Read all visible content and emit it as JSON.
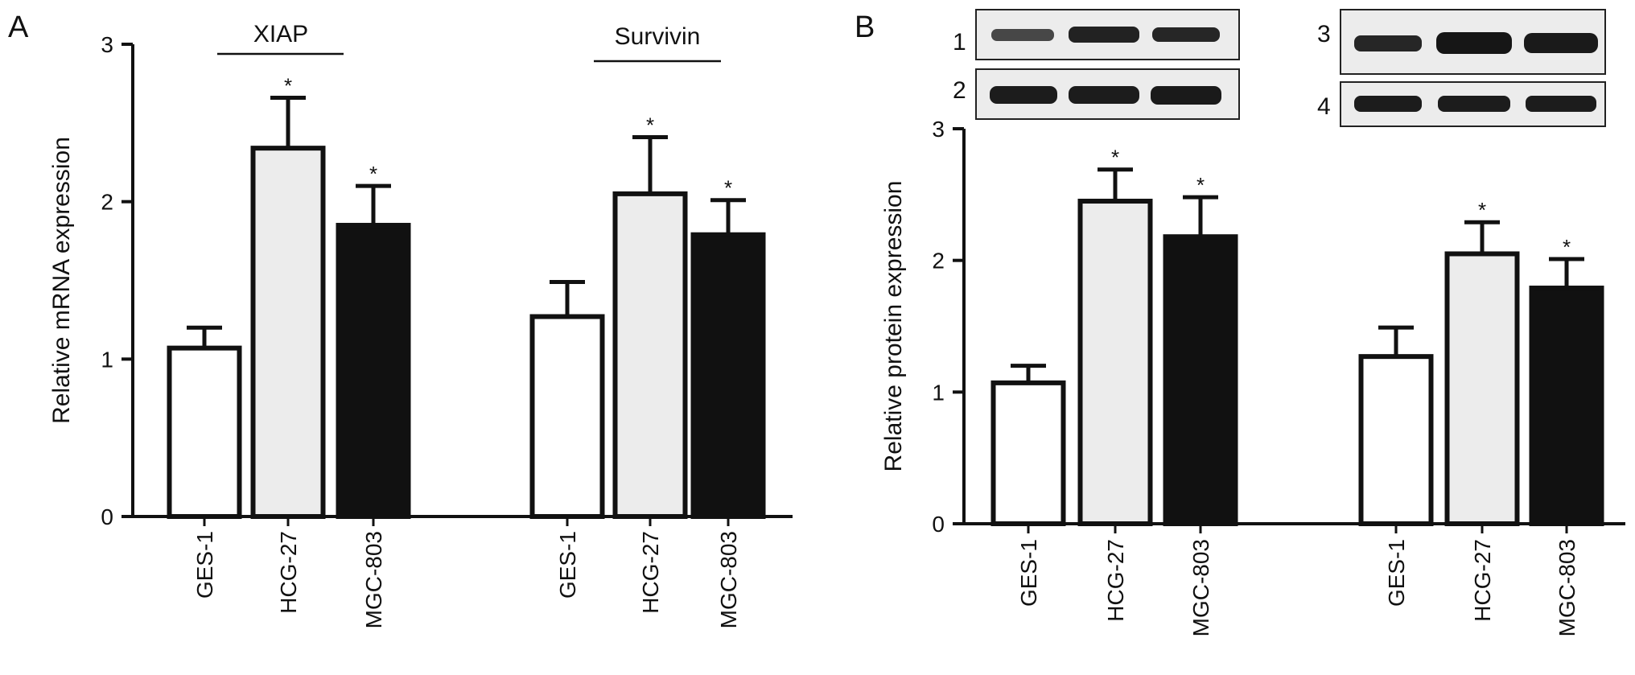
{
  "panel_a": {
    "letter": "A",
    "group_labels": [
      "XIAP",
      "Survivin"
    ]
  },
  "panel_b": {
    "letter": "B",
    "blot_labels": [
      "1",
      "2",
      "3",
      "4"
    ]
  },
  "chart_data": [
    {
      "type": "bar",
      "panel": "A",
      "ylabel": "Relative mRNA expression",
      "ylim": [
        0,
        3
      ],
      "yticks": [
        0,
        1,
        2,
        3
      ],
      "groups": [
        "XIAP",
        "Survivin"
      ],
      "categories": [
        "GES-1",
        "HCG-27",
        "MGC-803"
      ],
      "bar_colors": [
        "#ffffff",
        "#ececec",
        "#111111"
      ],
      "series": [
        {
          "group": "XIAP",
          "values": [
            1.07,
            2.34,
            1.85
          ],
          "errors": [
            0.13,
            0.32,
            0.25
          ],
          "significance": [
            "",
            "*",
            "*"
          ]
        },
        {
          "group": "Survivin",
          "values": [
            1.27,
            2.05,
            1.79
          ],
          "errors": [
            0.22,
            0.36,
            0.22
          ],
          "significance": [
            "",
            "*",
            "*"
          ]
        }
      ]
    },
    {
      "type": "bar",
      "panel": "B",
      "ylabel": "Relative protein expression",
      "ylim": [
        0,
        3
      ],
      "yticks": [
        0,
        1,
        2,
        3
      ],
      "categories": [
        "GES-1",
        "HCG-27",
        "MGC-803"
      ],
      "bar_colors": [
        "#ffffff",
        "#ececec",
        "#111111"
      ],
      "series": [
        {
          "values": [
            1.07,
            2.45,
            2.18
          ],
          "errors": [
            0.13,
            0.24,
            0.3
          ],
          "significance": [
            "",
            "*",
            "*"
          ]
        },
        {
          "values": [
            1.27,
            2.05,
            1.79
          ],
          "errors": [
            0.22,
            0.24,
            0.22
          ],
          "significance": [
            "",
            "*",
            "*"
          ]
        }
      ]
    }
  ]
}
